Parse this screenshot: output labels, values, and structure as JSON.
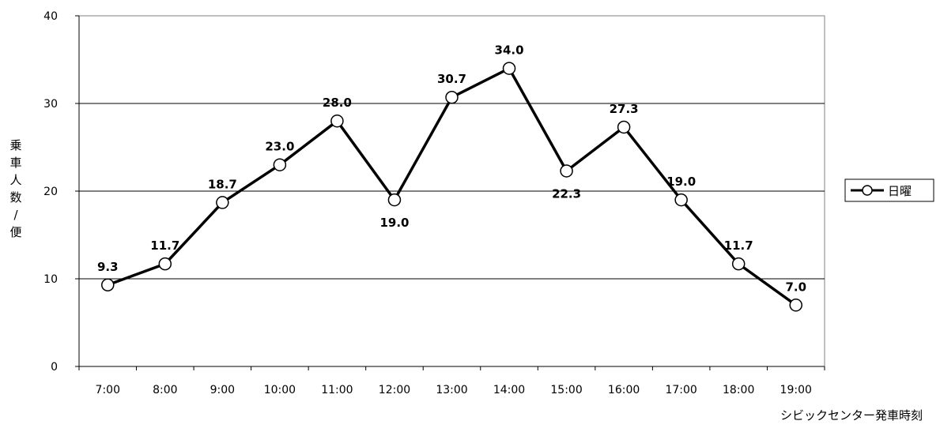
{
  "chart_data": {
    "type": "line",
    "categories": [
      "7:00",
      "8:00",
      "9:00",
      "10:00",
      "11:00",
      "12:00",
      "13:00",
      "14:00",
      "15:00",
      "16:00",
      "17:00",
      "18:00",
      "19:00"
    ],
    "series": [
      {
        "name": "日曜",
        "values": [
          9.3,
          11.7,
          18.7,
          23.0,
          28.0,
          19.0,
          30.7,
          34.0,
          22.3,
          27.3,
          19.0,
          11.7,
          7.0
        ],
        "data_labels": [
          "9.3",
          "11.7",
          "18.7",
          "23.0",
          "28.0",
          "19.0",
          "30.7",
          "34.0",
          "22.3",
          "27.3",
          "19.0",
          "11.7",
          "7.0"
        ],
        "color": "#000000",
        "marker": "open-circle"
      }
    ],
    "title": "",
    "xlabel": "シビックセンター発車時刻",
    "ylabel": [
      "乗",
      "車",
      "人",
      "数",
      "/",
      "便"
    ],
    "ylim": [
      0,
      40
    ],
    "yticks": [
      0,
      10,
      20,
      30,
      40
    ],
    "ytick_labels": [
      "0",
      "10",
      "20",
      "30",
      "40"
    ],
    "grid": "horizontal",
    "legend_position": "right"
  }
}
